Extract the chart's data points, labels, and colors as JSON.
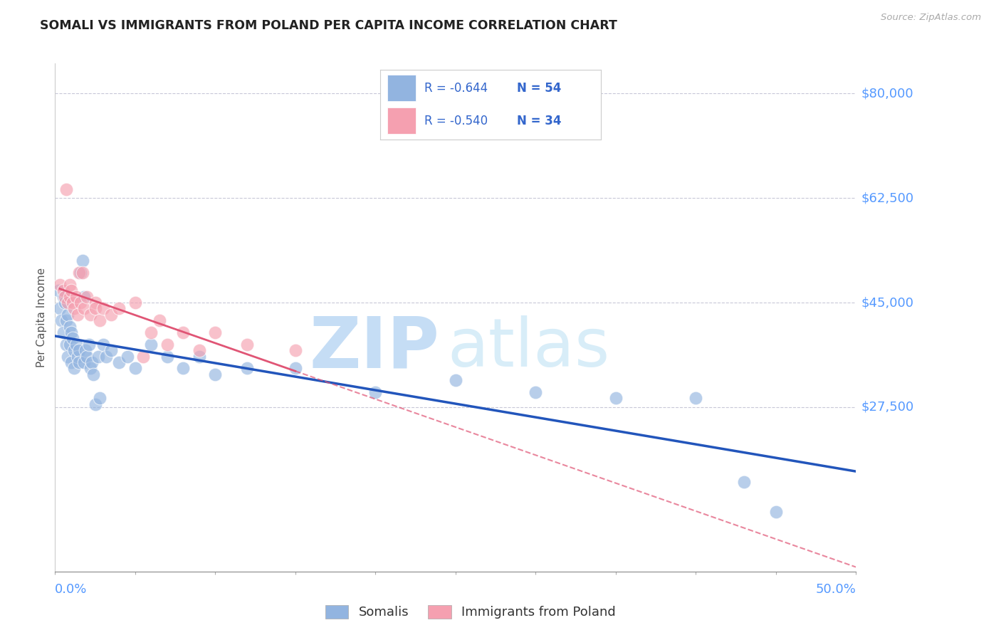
{
  "title": "SOMALI VS IMMIGRANTS FROM POLAND PER CAPITA INCOME CORRELATION CHART",
  "source": "Source: ZipAtlas.com",
  "ylabel": "Per Capita Income",
  "ymin": 0,
  "ymax": 85000,
  "xmin": 0.0,
  "xmax": 0.5,
  "somali_r": "-0.644",
  "somali_n": "54",
  "poland_r": "-0.540",
  "poland_n": "34",
  "somali_color": "#92b4e0",
  "poland_color": "#f5a0b0",
  "somali_line_color": "#2255bb",
  "poland_line_color": "#e05575",
  "grid_color": "#c8c8d8",
  "axis_label_color": "#5599ff",
  "text_color": "#4477cc",
  "legend_r_color": "#3366cc",
  "legend_n_color": "#3366cc",
  "watermark_zip_color": "#c5ddf5",
  "watermark_atlas_color": "#d8edf8",
  "ytick_values": [
    27500,
    45000,
    62500,
    80000
  ],
  "ytick_labels": [
    "$27,500",
    "$45,000",
    "$62,500",
    "$80,000"
  ],
  "somali_x": [
    0.002,
    0.003,
    0.004,
    0.005,
    0.005,
    0.006,
    0.007,
    0.007,
    0.008,
    0.008,
    0.009,
    0.009,
    0.01,
    0.01,
    0.011,
    0.012,
    0.012,
    0.013,
    0.014,
    0.015,
    0.015,
    0.016,
    0.017,
    0.018,
    0.018,
    0.019,
    0.02,
    0.021,
    0.022,
    0.023,
    0.024,
    0.025,
    0.027,
    0.028,
    0.03,
    0.032,
    0.035,
    0.04,
    0.045,
    0.05,
    0.06,
    0.07,
    0.08,
    0.09,
    0.1,
    0.12,
    0.15,
    0.2,
    0.25,
    0.3,
    0.35,
    0.4,
    0.43,
    0.45
  ],
  "somali_y": [
    47000,
    44000,
    42000,
    46000,
    40000,
    45000,
    42000,
    38000,
    43000,
    36000,
    41000,
    38000,
    40000,
    35000,
    39000,
    37000,
    34000,
    38000,
    36000,
    37000,
    35000,
    50000,
    52000,
    46000,
    35000,
    37000,
    36000,
    38000,
    34000,
    35000,
    33000,
    28000,
    36000,
    29000,
    38000,
    36000,
    37000,
    35000,
    36000,
    34000,
    38000,
    36000,
    34000,
    36000,
    33000,
    34000,
    34000,
    30000,
    32000,
    30000,
    29000,
    29000,
    15000,
    10000
  ],
  "poland_x": [
    0.003,
    0.005,
    0.006,
    0.007,
    0.008,
    0.009,
    0.009,
    0.01,
    0.011,
    0.012,
    0.013,
    0.014,
    0.015,
    0.016,
    0.017,
    0.018,
    0.02,
    0.022,
    0.025,
    0.025,
    0.028,
    0.03,
    0.035,
    0.04,
    0.05,
    0.055,
    0.06,
    0.065,
    0.07,
    0.08,
    0.09,
    0.1,
    0.12,
    0.15
  ],
  "poland_y": [
    48000,
    47000,
    46000,
    64000,
    45000,
    46000,
    48000,
    47000,
    45000,
    44000,
    46000,
    43000,
    50000,
    45000,
    50000,
    44000,
    46000,
    43000,
    45000,
    44000,
    42000,
    44000,
    43000,
    44000,
    45000,
    36000,
    40000,
    42000,
    38000,
    40000,
    37000,
    40000,
    38000,
    37000
  ]
}
